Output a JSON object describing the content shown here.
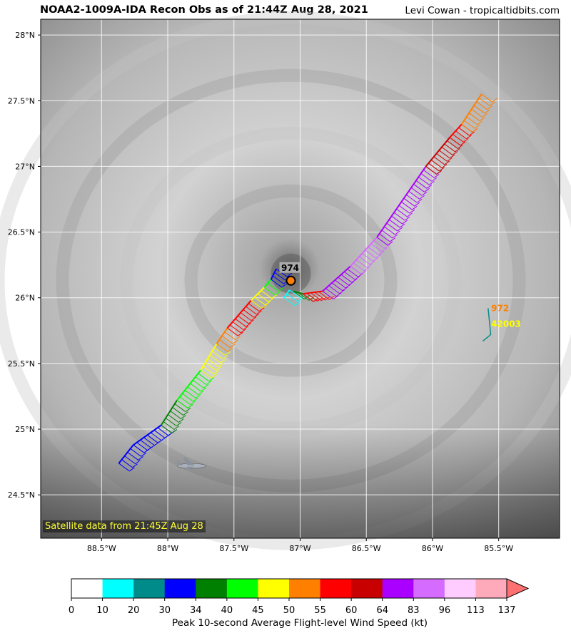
{
  "header": {
    "title": "NOAA2-1009A-IDA Recon Obs as of 21:44Z Aug 28, 2021",
    "credit": "Levi Cowan - tropicaltidbits.com"
  },
  "map": {
    "lon_range": [
      -88.96,
      -85.04
    ],
    "lat_range": [
      24.17,
      28.12
    ],
    "lon_ticks": [
      -88.5,
      -88.0,
      -87.5,
      -87.0,
      -86.5,
      -86.0,
      -85.5
    ],
    "lon_tick_labels": [
      "88.5°W",
      "88°W",
      "87.5°W",
      "87°W",
      "86.5°W",
      "86°W",
      "85.5°W"
    ],
    "lat_ticks": [
      24.5,
      25.0,
      25.5,
      26.0,
      26.5,
      27.0,
      27.5,
      28.0
    ],
    "lat_tick_labels": [
      "24.5°N",
      "25°N",
      "25.5°N",
      "26°N",
      "26.5°N",
      "27°N",
      "27.5°N",
      "28°N"
    ],
    "gridlines": true,
    "background": "grayscale satellite imagery",
    "satellite_label": "Satellite data from 21:45Z Aug 28",
    "center": {
      "lon": -87.07,
      "lat": 26.13,
      "label": "974",
      "marker_color": "#ff8000"
    },
    "buoy": {
      "id": "42003",
      "pressure_label": "972",
      "lon": -85.6,
      "lat": 25.92
    },
    "aircraft_icon": "aircraft-icon",
    "aircraft": {
      "lon": -87.82,
      "lat": 24.72
    }
  },
  "track_segments": [
    {
      "from": [
        -88.37,
        24.74
      ],
      "to": [
        -88.26,
        24.88
      ],
      "category": "30-34"
    },
    {
      "from": [
        -88.26,
        24.88
      ],
      "to": [
        -88.05,
        25.03
      ],
      "category": "30-34"
    },
    {
      "from": [
        -88.05,
        25.03
      ],
      "to": [
        -87.93,
        25.22
      ],
      "category": "34-40"
    },
    {
      "from": [
        -87.93,
        25.22
      ],
      "to": [
        -87.75,
        25.45
      ],
      "category": "40-45"
    },
    {
      "from": [
        -87.75,
        25.45
      ],
      "to": [
        -87.63,
        25.65
      ],
      "category": "45-50"
    },
    {
      "from": [
        -87.63,
        25.65
      ],
      "to": [
        -87.55,
        25.77
      ],
      "category": "50-55"
    },
    {
      "from": [
        -87.55,
        25.77
      ],
      "to": [
        -87.37,
        25.98
      ],
      "category": "55-60"
    },
    {
      "from": [
        -87.37,
        25.98
      ],
      "to": [
        -87.27,
        26.08
      ],
      "category": "45-50"
    },
    {
      "from": [
        -87.27,
        26.08
      ],
      "to": [
        -87.22,
        26.14
      ],
      "category": "40-45"
    },
    {
      "from": [
        -87.22,
        26.14
      ],
      "to": [
        -87.18,
        26.22
      ],
      "category": "30-34"
    },
    {
      "from": [
        -87.08,
        26.06
      ],
      "to": [
        -87.12,
        26.0
      ],
      "category": "10-20"
    },
    {
      "from": [
        -87.05,
        26.05
      ],
      "to": [
        -86.98,
        26.03
      ],
      "category": "34-40"
    },
    {
      "from": [
        -86.98,
        26.03
      ],
      "to": [
        -86.83,
        26.05
      ],
      "category": "55-60"
    },
    {
      "from": [
        -86.83,
        26.05
      ],
      "to": [
        -86.62,
        26.24
      ],
      "category": "64-83"
    },
    {
      "from": [
        -86.62,
        26.24
      ],
      "to": [
        -86.42,
        26.46
      ],
      "category": "83-96"
    },
    {
      "from": [
        -86.42,
        26.46
      ],
      "to": [
        -86.05,
        27.0
      ],
      "category": "64-83"
    },
    {
      "from": [
        -86.05,
        27.0
      ],
      "to": [
        -85.87,
        27.22
      ],
      "category": "60-64"
    },
    {
      "from": [
        -85.87,
        27.22
      ],
      "to": [
        -85.78,
        27.32
      ],
      "category": "55-60"
    },
    {
      "from": [
        -85.78,
        27.32
      ],
      "to": [
        -85.63,
        27.55
      ],
      "category": "50-55"
    }
  ],
  "buoy_track": [
    [
      -85.58,
      25.92
    ],
    [
      -85.56,
      25.72
    ],
    [
      -85.62,
      25.67
    ]
  ],
  "colorbar": {
    "title": "Peak 10-second Average Flight-level Wind Speed (kt)",
    "bins": [
      {
        "label": "0",
        "color": "#ffffff"
      },
      {
        "label": "10",
        "color": "#00ffff"
      },
      {
        "label": "20",
        "color": "#008b8b"
      },
      {
        "label": "30",
        "color": "#0000ff"
      },
      {
        "label": "34",
        "color": "#008000"
      },
      {
        "label": "40",
        "color": "#00ff00"
      },
      {
        "label": "45",
        "color": "#ffff00"
      },
      {
        "label": "50",
        "color": "#ff7f00"
      },
      {
        "label": "55",
        "color": "#ff0000"
      },
      {
        "label": "60",
        "color": "#c80000"
      },
      {
        "label": "64",
        "color": "#aa00ff"
      },
      {
        "label": "83",
        "color": "#d56bff"
      },
      {
        "label": "96",
        "color": "#ffccff"
      },
      {
        "label": "113",
        "color": "#ffaabb"
      }
    ],
    "end_label": "137",
    "extend_color": "#ff7070"
  }
}
